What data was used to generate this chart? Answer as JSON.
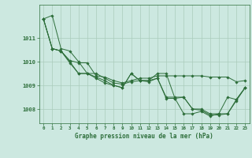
{
  "title": "Graphe pression niveau de la mer (hPa)",
  "background_color": "#cce8e0",
  "grid_color": "#aaccbb",
  "line_color": "#2d6e3a",
  "xlim": [
    -0.5,
    23.5
  ],
  "ylim": [
    1007.4,
    1012.4
  ],
  "yticks": [
    1008,
    1009,
    1010,
    1011
  ],
  "xtick_labels": [
    "0",
    "1",
    "2",
    "3",
    "4",
    "5",
    "6",
    "7",
    "8",
    "9",
    "10",
    "11",
    "12",
    "13",
    "14",
    "15",
    "16",
    "17",
    "18",
    "19",
    "20",
    "21",
    "22",
    "23"
  ],
  "series": [
    [
      1011.8,
      1011.95,
      1010.55,
      1010.45,
      1010.0,
      1009.5,
      1009.5,
      1009.3,
      1009.1,
      1009.05,
      1009.15,
      1009.2,
      1009.2,
      1009.5,
      1009.5,
      1008.45,
      1007.8,
      1007.8,
      1007.9,
      1007.7,
      1007.8,
      1007.8,
      1008.4,
      1008.9
    ],
    [
      1011.8,
      1010.55,
      1010.45,
      1010.05,
      1009.95,
      1009.95,
      1009.4,
      1009.35,
      1009.2,
      1009.1,
      1009.2,
      1009.3,
      1009.3,
      1009.4,
      1009.4,
      1009.4,
      1009.4,
      1009.4,
      1009.4,
      1009.35,
      1009.35,
      1009.35,
      1009.15,
      1009.2
    ],
    [
      1011.8,
      1010.55,
      1010.45,
      1010.0,
      1009.5,
      1009.5,
      1009.35,
      1009.2,
      1009.0,
      1008.9,
      1009.5,
      1009.2,
      1009.2,
      1009.3,
      1008.5,
      1008.5,
      1008.5,
      1008.0,
      1008.0,
      1007.8,
      1007.8,
      1008.5,
      1008.4,
      1008.9
    ],
    [
      1011.8,
      1010.55,
      1010.45,
      1009.95,
      1009.5,
      1009.5,
      1009.3,
      1009.1,
      1009.0,
      1008.9,
      1009.5,
      1009.2,
      1009.15,
      1009.3,
      1008.45,
      1008.45,
      1008.5,
      1008.0,
      1007.95,
      1007.75,
      1007.75,
      1007.8,
      1008.35,
      1008.9
    ]
  ]
}
